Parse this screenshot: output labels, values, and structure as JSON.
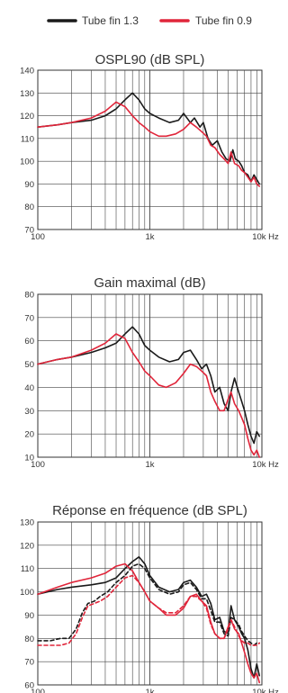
{
  "legend": [
    {
      "name": "Tube fin 1.3",
      "color": "#1a1a1a"
    },
    {
      "name": "Tube fin 0.9",
      "color": "#e0253a"
    }
  ],
  "chart_data": [
    {
      "type": "line",
      "title": "OSPL90 (dB SPL)",
      "x_scale": "log",
      "xlim": [
        100,
        10000
      ],
      "ylim": [
        70,
        140
      ],
      "x_ticks": [
        {
          "value": 100,
          "label": "100"
        },
        {
          "value": 1000,
          "label": "1k"
        },
        {
          "value": 10000,
          "label": "10k Hz"
        }
      ],
      "y_ticks": [
        70,
        80,
        90,
        100,
        110,
        120,
        130,
        140
      ],
      "grid": true,
      "series": [
        {
          "name": "Tube fin 1.3",
          "color": "#1a1a1a",
          "dashed": false,
          "x": [
            100,
            150,
            200,
            300,
            400,
            500,
            600,
            700,
            800,
            900,
            1000,
            1200,
            1500,
            1800,
            2000,
            2300,
            2500,
            2800,
            3000,
            3300,
            3600,
            4000,
            4400,
            4800,
            5200,
            5500,
            5800,
            6200,
            6600,
            7000,
            7500,
            8000,
            8500,
            9000,
            9500
          ],
          "y": [
            115,
            116,
            117,
            118,
            120,
            123,
            127,
            130,
            127,
            123,
            121,
            119,
            117,
            118,
            121,
            117,
            119,
            115,
            117,
            110,
            107,
            109,
            104,
            101,
            100,
            105,
            101,
            100,
            98,
            95,
            94,
            91,
            94,
            92,
            90
          ]
        },
        {
          "name": "Tube fin 0.9",
          "color": "#e0253a",
          "dashed": false,
          "x": [
            100,
            150,
            200,
            300,
            400,
            500,
            600,
            700,
            800,
            900,
            1000,
            1200,
            1400,
            1700,
            2000,
            2300,
            2600,
            2900,
            3200,
            3500,
            3800,
            4200,
            4600,
            5000,
            5300,
            5700,
            6200,
            6600,
            7000,
            7500,
            8000,
            8500,
            9000,
            9500
          ],
          "y": [
            115,
            116,
            117,
            119,
            122,
            126,
            124,
            120,
            117,
            115,
            113,
            111,
            111,
            112,
            114,
            117,
            115,
            113,
            111,
            107,
            106,
            103,
            101,
            99,
            104,
            99,
            98,
            96,
            95,
            93,
            91,
            93,
            90,
            89
          ]
        }
      ]
    },
    {
      "type": "line",
      "title": "Gain maximal (dB)",
      "x_scale": "log",
      "xlim": [
        100,
        10000
      ],
      "ylim": [
        10,
        80
      ],
      "x_ticks": [
        {
          "value": 100,
          "label": "100"
        },
        {
          "value": 1000,
          "label": "1k"
        },
        {
          "value": 10000,
          "label": "10k Hz"
        }
      ],
      "y_ticks": [
        10,
        20,
        30,
        40,
        50,
        60,
        70,
        80
      ],
      "grid": true,
      "series": [
        {
          "name": "Tube fin 1.3",
          "color": "#1a1a1a",
          "dashed": false,
          "x": [
            100,
            150,
            200,
            300,
            400,
            500,
            600,
            700,
            800,
            900,
            1000,
            1200,
            1500,
            1800,
            2000,
            2300,
            2600,
            2900,
            3200,
            3500,
            3800,
            4200,
            4600,
            5000,
            5300,
            5700,
            6200,
            6600,
            7000,
            7500,
            8000,
            8500,
            9000,
            9500
          ],
          "y": [
            50,
            52,
            53,
            55,
            57,
            59,
            63,
            66,
            63,
            58,
            56,
            53,
            51,
            52,
            55,
            56,
            52,
            48,
            50,
            45,
            38,
            40,
            33,
            30,
            38,
            44,
            38,
            34,
            30,
            24,
            19,
            16,
            21,
            19
          ]
        },
        {
          "name": "Tube fin 0.9",
          "color": "#e0253a",
          "dashed": false,
          "x": [
            100,
            150,
            200,
            300,
            400,
            500,
            600,
            700,
            800,
            900,
            1000,
            1200,
            1400,
            1700,
            2000,
            2300,
            2600,
            2900,
            3200,
            3500,
            3800,
            4200,
            4600,
            5000,
            5300,
            5700,
            6200,
            6600,
            7000,
            7500,
            8000,
            8500,
            9000,
            9500
          ],
          "y": [
            50,
            52,
            53,
            56,
            59,
            63,
            61,
            55,
            51,
            47,
            45,
            41,
            40,
            42,
            46,
            50,
            49,
            47,
            45,
            38,
            34,
            30,
            30,
            35,
            38,
            33,
            30,
            27,
            24,
            18,
            13,
            11,
            13,
            10
          ]
        }
      ]
    },
    {
      "type": "line",
      "title": "Réponse en fréquence (dB SPL)",
      "x_scale": "log",
      "xlim": [
        100,
        10000
      ],
      "ylim": [
        60,
        130
      ],
      "x_ticks": [
        {
          "value": 100,
          "label": "100"
        },
        {
          "value": 1000,
          "label": "1k"
        },
        {
          "value": 10000,
          "label": "10k Hz"
        }
      ],
      "y_ticks": [
        60,
        70,
        80,
        90,
        100,
        110,
        120,
        130
      ],
      "grid": true,
      "series": [
        {
          "name": "Tube fin 1.3",
          "color": "#1a1a1a",
          "dashed": false,
          "x": [
            100,
            150,
            200,
            300,
            400,
            500,
            600,
            700,
            800,
            900,
            1000,
            1200,
            1500,
            1800,
            2000,
            2300,
            2600,
            2900,
            3200,
            3500,
            3800,
            4200,
            4600,
            5000,
            5300,
            5700,
            6200,
            6600,
            7000,
            7500,
            8000,
            8500,
            9000,
            9500
          ],
          "y": [
            99,
            101,
            102,
            103,
            104,
            106,
            110,
            113,
            115,
            112,
            107,
            102,
            100,
            101,
            104,
            105,
            102,
            98,
            99,
            95,
            88,
            89,
            83,
            82,
            94,
            88,
            85,
            82,
            80,
            75,
            67,
            63,
            69,
            64
          ]
        },
        {
          "name": "Tube fin 0.9",
          "color": "#e0253a",
          "dashed": false,
          "x": [
            100,
            150,
            200,
            300,
            400,
            500,
            600,
            700,
            800,
            900,
            1000,
            1200,
            1400,
            1700,
            2000,
            2300,
            2600,
            2900,
            3200,
            3500,
            3800,
            4200,
            4600,
            5000,
            5300,
            5700,
            6200,
            6600,
            7000,
            7500,
            8000,
            8500,
            9000,
            9500
          ],
          "y": [
            99,
            102,
            104,
            106,
            108,
            111,
            112,
            109,
            104,
            100,
            96,
            93,
            90,
            90,
            93,
            98,
            99,
            96,
            94,
            87,
            82,
            80,
            80,
            85,
            88,
            84,
            82,
            78,
            74,
            69,
            65,
            63,
            65,
            61
          ]
        },
        {
          "name": "Tube fin 1.3",
          "color": "#1a1a1a",
          "dashed": true,
          "x": [
            100,
            130,
            160,
            190,
            220,
            250,
            280,
            320,
            360,
            420,
            500,
            600,
            700,
            800,
            900,
            1000,
            1200,
            1500,
            1800,
            2000,
            2300,
            2600,
            2900,
            3200,
            3500,
            3800,
            4200,
            4600,
            5000,
            5300,
            5700,
            6200,
            6600,
            7000,
            7500,
            8000,
            8500,
            9000,
            9500
          ],
          "y": [
            79,
            79,
            80,
            80,
            84,
            91,
            95,
            96,
            98,
            100,
            104,
            107,
            111,
            112,
            110,
            106,
            101,
            99,
            100,
            103,
            104,
            101,
            97,
            97,
            92,
            87,
            87,
            82,
            81,
            89,
            88,
            86,
            83,
            81,
            79,
            78,
            77,
            78,
            78
          ]
        },
        {
          "name": "Tube fin 0.9",
          "color": "#e0253a",
          "dashed": true,
          "x": [
            100,
            130,
            160,
            190,
            220,
            250,
            280,
            320,
            360,
            420,
            500,
            600,
            700,
            800,
            900,
            1000,
            1200,
            1400,
            1700,
            2000,
            2300,
            2600,
            2900,
            3200,
            3500,
            3800,
            4200,
            4600,
            5000,
            5300,
            5700,
            6200,
            6600,
            7000,
            7500,
            8000,
            8500,
            9000,
            9500
          ],
          "y": [
            77,
            77,
            77,
            78,
            82,
            89,
            94,
            95,
            96,
            98,
            102,
            106,
            107,
            104,
            100,
            96,
            93,
            91,
            91,
            94,
            98,
            98,
            96,
            93,
            86,
            82,
            80,
            80,
            84,
            88,
            85,
            81,
            79,
            78,
            78,
            77,
            77,
            77,
            78
          ]
        }
      ]
    }
  ]
}
